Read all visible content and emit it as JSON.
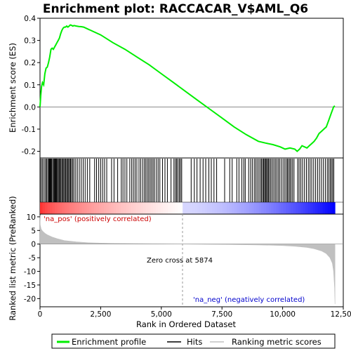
{
  "chart_data": {
    "type": "line",
    "title": "Enrichment plot: RACCACAR_V$AML_Q6",
    "top_panel": {
      "ylabel": "Enrichment score (ES)",
      "ylim": [
        -0.23,
        0.4
      ],
      "yticks": [
        -0.2,
        -0.1,
        0.0,
        0.1,
        0.2,
        0.3,
        0.4
      ],
      "ytick_labels": [
        "-0.2",
        "-0.1",
        "0.0",
        "0.1",
        "0.2",
        "0.3",
        "0.4"
      ],
      "series": [
        {
          "name": "Enrichment profile",
          "color": "#00ee00",
          "x": [
            0,
            30,
            60,
            100,
            150,
            200,
            250,
            300,
            350,
            400,
            450,
            500,
            550,
            600,
            650,
            700,
            750,
            800,
            850,
            900,
            950,
            1000,
            1050,
            1100,
            1150,
            1200,
            1250,
            1300,
            1350,
            1400,
            1500,
            1600,
            1700,
            1800,
            2000,
            2500,
            3000,
            3500,
            4000,
            4500,
            5000,
            5500,
            5874,
            6500,
            7000,
            7500,
            8000,
            8500,
            9000,
            9300,
            9600,
            9900,
            10100,
            10300,
            10500,
            10600,
            10700,
            10800,
            10900,
            11000,
            11100,
            11200,
            11300,
            11400,
            11500,
            11600,
            11700,
            11800,
            11900,
            12000,
            12100,
            12150
          ],
          "y": [
            0.0,
            0.05,
            0.09,
            0.11,
            0.1,
            0.15,
            0.175,
            0.18,
            0.2,
            0.225,
            0.26,
            0.265,
            0.26,
            0.27,
            0.28,
            0.29,
            0.3,
            0.31,
            0.33,
            0.345,
            0.355,
            0.36,
            0.36,
            0.365,
            0.36,
            0.365,
            0.37,
            0.368,
            0.365,
            0.367,
            0.365,
            0.363,
            0.362,
            0.36,
            0.35,
            0.325,
            0.29,
            0.26,
            0.225,
            0.19,
            0.15,
            0.11,
            0.08,
            0.03,
            -0.01,
            -0.05,
            -0.09,
            -0.125,
            -0.155,
            -0.163,
            -0.17,
            -0.18,
            -0.19,
            -0.185,
            -0.19,
            -0.2,
            -0.19,
            -0.175,
            -0.18,
            -0.185,
            -0.175,
            -0.165,
            -0.155,
            -0.14,
            -0.12,
            -0.11,
            -0.1,
            -0.09,
            -0.06,
            -0.03,
            0.0,
            0.005
          ]
        }
      ]
    },
    "hits_panel": {
      "series_name": "Hits",
      "hit_ranks": [
        10,
        60,
        110,
        170,
        230,
        270,
        320,
        360,
        390,
        420,
        450,
        480,
        520,
        560,
        590,
        620,
        650,
        680,
        720,
        750,
        790,
        820,
        860,
        900,
        940,
        980,
        1020,
        1060,
        1100,
        1140,
        1180,
        1220,
        1260,
        1300,
        1350,
        1400,
        1470,
        1540,
        1620,
        1700,
        1780,
        1860,
        1950,
        2050,
        2250,
        2330,
        2420,
        2500,
        2580,
        2660,
        2750,
        2950,
        3050,
        3200,
        3350,
        3420,
        3500,
        3580,
        3700,
        3780,
        3850,
        3920,
        3990,
        4080,
        4150,
        4230,
        4300,
        4360,
        4420,
        4480,
        4540,
        4600,
        4660,
        4720,
        4800,
        4870,
        4940,
        5050,
        5150,
        5250,
        5400,
        5520,
        5580,
        5630,
        5680,
        5740,
        5790,
        5840,
        6230,
        6360,
        6470,
        6600,
        6720,
        6830,
        6960,
        7060,
        7170,
        7280,
        7610,
        7820,
        7920,
        8110,
        8200,
        8320,
        8400,
        8460,
        8600,
        8680,
        8750,
        8830,
        8890,
        8950,
        9020,
        9080,
        9130,
        9180,
        9220,
        9260,
        9300,
        9340,
        9380,
        9420,
        9470,
        9520,
        9580,
        9640,
        9700,
        9760,
        9820,
        9880,
        9950,
        10020,
        10090,
        10150,
        10200,
        10250,
        10300,
        10350,
        10410,
        10470,
        10620,
        10680,
        10750,
        10820,
        10900,
        10980,
        11060,
        11130,
        11200,
        11280,
        11360,
        11440,
        11520,
        11600,
        11680,
        11760,
        11840,
        11900,
        11960,
        12010,
        12060,
        12110
      ],
      "color_scale": [
        "#ff0000",
        "#ffffff",
        "#0000ff"
      ]
    },
    "bottom_panel": {
      "ylabel": "Ranked list metric (PreRanked)",
      "ylim": [
        -23,
        11
      ],
      "yticks": [
        -20,
        -15,
        -10,
        -5,
        0,
        5,
        10
      ],
      "ytick_labels": [
        "-20",
        "-15",
        "-10",
        "-5",
        "0",
        "5",
        "10"
      ],
      "series": [
        {
          "name": "Ranking metric scores",
          "color": "#c0c0c0",
          "x": [
            0,
            10,
            50,
            100,
            200,
            300,
            500,
            700,
            1000,
            1500,
            2000,
            2500,
            3000,
            4000,
            5000,
            5874,
            7000,
            8000,
            9000,
            10000,
            10500,
            11000,
            11300,
            11600,
            11800,
            11950,
            12050,
            12100,
            12140,
            12160
          ],
          "y": [
            10.5,
            7.0,
            5.5,
            4.8,
            4.0,
            3.4,
            2.6,
            2.0,
            1.3,
            0.8,
            0.5,
            0.35,
            0.25,
            0.15,
            0.07,
            0.0,
            -0.1,
            -0.2,
            -0.3,
            -0.55,
            -0.8,
            -1.2,
            -1.7,
            -2.5,
            -3.5,
            -5.0,
            -7.0,
            -10.0,
            -16.0,
            -22.0
          ]
        }
      ],
      "annotations": {
        "zero_cross": "Zero cross at 5874",
        "zero_cross_rank": 5874,
        "na_pos": "'na_pos' (positively correlated)",
        "na_neg": "'na_neg' (negatively correlated)"
      }
    },
    "xaxis": {
      "label": "Rank in Ordered Dataset",
      "xlim": [
        0,
        12500
      ],
      "xticks": [
        0,
        2500,
        5000,
        7500,
        10000,
        12500
      ],
      "xtick_labels": [
        "0",
        "2,500",
        "5,000",
        "7,500",
        "10,000",
        "12,500"
      ],
      "max_rank": 12160
    },
    "legend": {
      "placement": "bottom",
      "entries": [
        {
          "label": "Enrichment profile",
          "color": "#00ee00"
        },
        {
          "label": "Hits",
          "color": "#000000"
        },
        {
          "label": "Ranking metric scores",
          "color": "#c0c0c0"
        }
      ]
    }
  }
}
